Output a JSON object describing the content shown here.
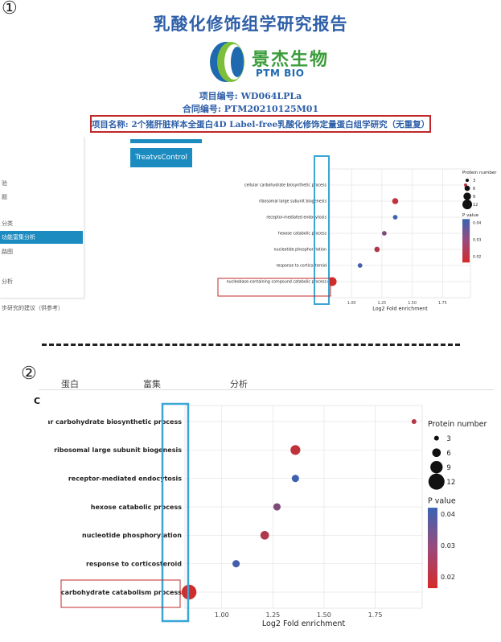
{
  "markers": {
    "first": "①",
    "second": "②"
  },
  "report": {
    "title": "乳酸化修饰组学研究报告",
    "logo_cn": "景杰生物",
    "logo_en": "PTM BIO",
    "project_id_line": "项目编号: WD064LPLa",
    "contract_id_line": "合同编号: PTM20210125M01",
    "project_name_line": "项目名称: 2个猪肝脏样本全蛋白4D Label-free乳酸化修饰定量蛋白组学研究（无重复）"
  },
  "sidebar": {
    "items": [
      {
        "label": "验"
      },
      {
        "label": "题"
      },
      {
        "label": "分类"
      },
      {
        "label": "功能富集分析"
      },
      {
        "label": "路图"
      },
      {
        "label": "分析"
      },
      {
        "label": "步研究的建议（供参考）"
      }
    ]
  },
  "tab": {
    "label": "TreatvsControl"
  },
  "bottom_tabs": [
    "蛋白",
    "富集",
    "分析"
  ],
  "panel_label": "C",
  "colors": {
    "accent": "#1c8bc0",
    "highlight_box": "#3aa6d6",
    "red_box": "#c0282a",
    "title_blue": "#2e5fa8"
  },
  "chart_data": [
    {
      "type": "scatter",
      "title": "",
      "xlabel": "Log2 Fold enrichment",
      "ylabel": "",
      "xlim": [
        0.82,
        1.98
      ],
      "x_ticks": [
        "1.00",
        "1.25",
        "1.50",
        "1.75"
      ],
      "categories": [
        "cellular carbohydrate biosynthetic process",
        "ribosomal large subunit biogenesis",
        "receptor-mediated endocytosis",
        "hexose catabolic process",
        "nucleotide phosphorylation",
        "response to corticosteroid",
        "nucleobase-containing compound catabolic process"
      ],
      "x": [
        1.94,
        1.36,
        1.36,
        1.27,
        1.21,
        1.07,
        0.84
      ],
      "protein_number": [
        3,
        7,
        5,
        5,
        6,
        5,
        11
      ],
      "p_value": [
        0.018,
        0.016,
        0.043,
        0.03,
        0.02,
        0.042,
        0.013
      ],
      "size_legend": {
        "title": "Protein number",
        "values": [
          "3",
          "6",
          "9",
          "12"
        ]
      },
      "color_legend": {
        "title": "P value",
        "ticks": [
          "0.04",
          "0.03",
          "0.02"
        ],
        "low": "#d42a2a",
        "high": "#3a63b3"
      },
      "grid": true
    },
    {
      "type": "scatter",
      "title": "",
      "xlabel": "Log2 Fold enrichment",
      "ylabel": "",
      "xlim": [
        0.82,
        1.98
      ],
      "x_ticks": [
        "1.00",
        "1.25",
        "1.50",
        "1.75"
      ],
      "categories": [
        "cellular carbohydrate biosynthetic process",
        "ribosomal large subunit biogenesis",
        "receptor-mediated endocytosis",
        "hexose catabolic process",
        "nucleotide phosphorylation",
        "response to corticosteroid",
        "carbohydrate catabolism process"
      ],
      "x": [
        1.94,
        1.36,
        1.36,
        1.27,
        1.21,
        1.07,
        0.84
      ],
      "protein_number": [
        3,
        7,
        5,
        5,
        6,
        5,
        11
      ],
      "p_value": [
        0.018,
        0.016,
        0.043,
        0.03,
        0.02,
        0.042,
        0.013
      ],
      "size_legend": {
        "title": "Protein number",
        "values": [
          "3",
          "6",
          "9",
          "12"
        ]
      },
      "color_legend": {
        "title": "P value",
        "ticks": [
          "0.04",
          "0.03",
          "0.02"
        ],
        "low": "#d42a2a",
        "high": "#3a63b3"
      },
      "grid": true
    }
  ]
}
